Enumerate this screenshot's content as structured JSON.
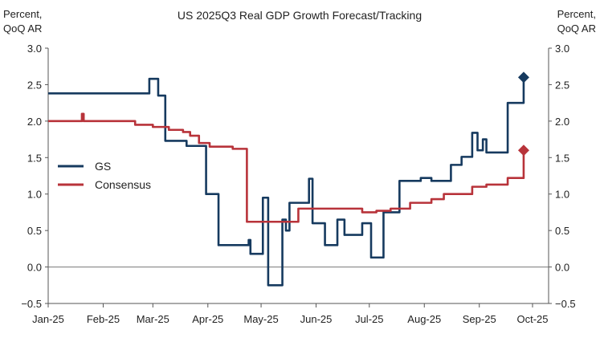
{
  "chart_data": {
    "type": "line",
    "title": "US 2025Q3 Real GDP Growth Forecast/Tracking",
    "ylabel_left": [
      "Percent,",
      "QoQ AR"
    ],
    "ylabel_right": [
      "Percent,",
      "QoQ AR"
    ],
    "ylim": [
      -0.5,
      3.0
    ],
    "yticks": [
      "3.0",
      "2.5",
      "2.0",
      "1.5",
      "1.0",
      "0.5",
      "0.0",
      "−0.5"
    ],
    "ytick_values": [
      3.0,
      2.5,
      2.0,
      1.5,
      1.0,
      0.5,
      0.0,
      -0.5
    ],
    "xlim": [
      "2025-01-01",
      "2025-10-01"
    ],
    "xticks": [
      "Jan-25",
      "Feb-25",
      "Mar-25",
      "Apr-25",
      "May-25",
      "Jun-25",
      "Jul-25",
      "Aug-25",
      "Sep-25",
      "Oct-25"
    ],
    "xtick_dates": [
      "2025-01-01",
      "2025-02-01",
      "2025-03-01",
      "2025-04-01",
      "2025-05-01",
      "2025-06-01",
      "2025-07-01",
      "2025-08-01",
      "2025-09-01",
      "2025-10-01"
    ],
    "grid": false,
    "zero_line": true,
    "legend_placement": "center-left",
    "series": [
      {
        "name": "GS",
        "color": "#163a5f",
        "step": true,
        "end_marker": "diamond",
        "points": [
          [
            "2025-01-01",
            2.38
          ],
          [
            "2025-02-27",
            2.58
          ],
          [
            "2025-03-04",
            2.35
          ],
          [
            "2025-03-08",
            1.73
          ],
          [
            "2025-03-20",
            1.66
          ],
          [
            "2025-03-31",
            1.0
          ],
          [
            "2025-04-07",
            0.3
          ],
          [
            "2025-04-24",
            0.37
          ],
          [
            "2025-04-25",
            0.18
          ],
          [
            "2025-05-02",
            0.95
          ],
          [
            "2025-05-05",
            -0.25
          ],
          [
            "2025-05-13",
            0.65
          ],
          [
            "2025-05-15",
            0.5
          ],
          [
            "2025-05-17",
            0.88
          ],
          [
            "2025-05-28",
            1.21
          ],
          [
            "2025-05-30",
            0.6
          ],
          [
            "2025-06-06",
            0.3
          ],
          [
            "2025-06-13",
            0.65
          ],
          [
            "2025-06-17",
            0.44
          ],
          [
            "2025-06-27",
            0.6
          ],
          [
            "2025-07-02",
            0.13
          ],
          [
            "2025-07-09",
            0.75
          ],
          [
            "2025-07-18",
            1.18
          ],
          [
            "2025-07-30",
            1.22
          ],
          [
            "2025-08-05",
            1.18
          ],
          [
            "2025-08-16",
            1.4
          ],
          [
            "2025-08-22",
            1.51
          ],
          [
            "2025-08-28",
            1.84
          ],
          [
            "2025-08-31",
            1.6
          ],
          [
            "2025-09-03",
            1.75
          ],
          [
            "2025-09-05",
            1.57
          ],
          [
            "2025-09-17",
            2.25
          ],
          [
            "2025-09-26",
            2.6
          ]
        ]
      },
      {
        "name": "Consensus",
        "color": "#b8333a",
        "step": true,
        "end_marker": "diamond",
        "points": [
          [
            "2025-01-01",
            2.0
          ],
          [
            "2025-01-20",
            2.1
          ],
          [
            "2025-01-21",
            2.0
          ],
          [
            "2025-02-19",
            1.95
          ],
          [
            "2025-03-01",
            1.92
          ],
          [
            "2025-03-10",
            1.88
          ],
          [
            "2025-03-18",
            1.85
          ],
          [
            "2025-03-22",
            1.8
          ],
          [
            "2025-03-27",
            1.7
          ],
          [
            "2025-04-02",
            1.65
          ],
          [
            "2025-04-15",
            1.62
          ],
          [
            "2025-04-23",
            0.62
          ],
          [
            "2025-05-22",
            0.8
          ],
          [
            "2025-06-27",
            0.75
          ],
          [
            "2025-07-05",
            0.77
          ],
          [
            "2025-07-13",
            0.8
          ],
          [
            "2025-07-24",
            0.88
          ],
          [
            "2025-08-05",
            0.93
          ],
          [
            "2025-08-12",
            1.0
          ],
          [
            "2025-08-28",
            1.1
          ],
          [
            "2025-09-05",
            1.13
          ],
          [
            "2025-09-17",
            1.22
          ],
          [
            "2025-09-26",
            1.6
          ]
        ]
      }
    ]
  }
}
